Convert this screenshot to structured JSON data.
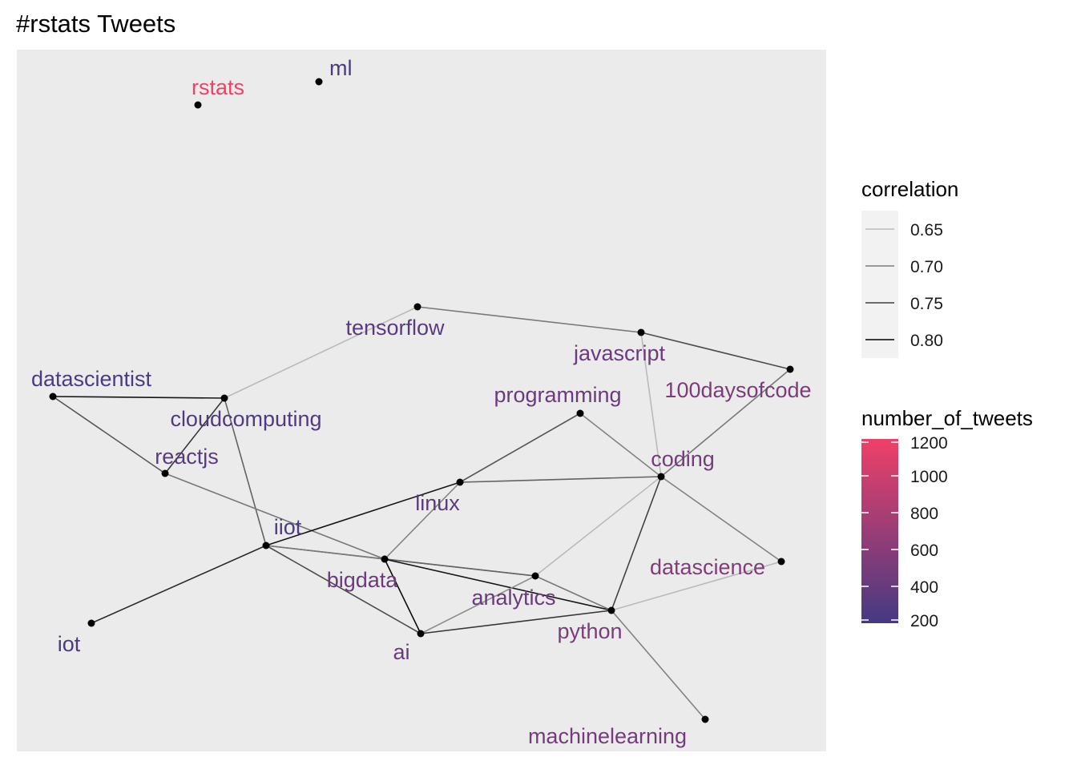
{
  "title": "#rstats Tweets",
  "chart_data": {
    "type": "network",
    "title": "#rstats Tweets",
    "nodes": [
      {
        "id": "rstats",
        "label": "rstats",
        "number_of_tweets": 1200
      },
      {
        "id": "ml",
        "label": "ml",
        "number_of_tweets": 250
      },
      {
        "id": "tensorflow",
        "label": "tensorflow",
        "number_of_tweets": 330
      },
      {
        "id": "javascript",
        "label": "javascript",
        "number_of_tweets": 420
      },
      {
        "id": "100daysofcode",
        "label": "100daysofcode",
        "number_of_tweets": 520
      },
      {
        "id": "datascientist",
        "label": "datascientist",
        "number_of_tweets": 250
      },
      {
        "id": "cloudcomputing",
        "label": "cloudcomputing",
        "number_of_tweets": 280
      },
      {
        "id": "programming",
        "label": "programming",
        "number_of_tweets": 420
      },
      {
        "id": "reactjs",
        "label": "reactjs",
        "number_of_tweets": 330
      },
      {
        "id": "coding",
        "label": "coding",
        "number_of_tweets": 480
      },
      {
        "id": "linux",
        "label": "linux",
        "number_of_tweets": 330
      },
      {
        "id": "iiot",
        "label": "iiot",
        "number_of_tweets": 280
      },
      {
        "id": "bigdata",
        "label": "bigdata",
        "number_of_tweets": 420
      },
      {
        "id": "analytics",
        "label": "analytics",
        "number_of_tweets": 420
      },
      {
        "id": "datascience",
        "label": "datascience",
        "number_of_tweets": 560
      },
      {
        "id": "iot",
        "label": "iot",
        "number_of_tweets": 250
      },
      {
        "id": "python",
        "label": "python",
        "number_of_tweets": 520
      },
      {
        "id": "ai",
        "label": "ai",
        "number_of_tweets": 420
      },
      {
        "id": "machinelearning",
        "label": "machinelearning",
        "number_of_tweets": 480
      }
    ],
    "edges": [
      {
        "source": "tensorflow",
        "target": "javascript",
        "correlation": 0.72
      },
      {
        "source": "tensorflow",
        "target": "cloudcomputing",
        "correlation": 0.66
      },
      {
        "source": "javascript",
        "target": "100daysofcode",
        "correlation": 0.76
      },
      {
        "source": "javascript",
        "target": "coding",
        "correlation": 0.66
      },
      {
        "source": "100daysofcode",
        "target": "coding",
        "correlation": 0.72
      },
      {
        "source": "datascientist",
        "target": "cloudcomputing",
        "correlation": 0.81
      },
      {
        "source": "datascientist",
        "target": "reactjs",
        "correlation": 0.75
      },
      {
        "source": "cloudcomputing",
        "target": "reactjs",
        "correlation": 0.78
      },
      {
        "source": "cloudcomputing",
        "target": "iiot",
        "correlation": 0.74
      },
      {
        "source": "reactjs",
        "target": "bigdata",
        "correlation": 0.72
      },
      {
        "source": "programming",
        "target": "linux",
        "correlation": 0.75
      },
      {
        "source": "programming",
        "target": "coding",
        "correlation": 0.71
      },
      {
        "source": "linux",
        "target": "coding",
        "correlation": 0.74
      },
      {
        "source": "linux",
        "target": "iiot",
        "correlation": 0.81
      },
      {
        "source": "linux",
        "target": "bigdata",
        "correlation": 0.71
      },
      {
        "source": "coding",
        "target": "datascience",
        "correlation": 0.71
      },
      {
        "source": "coding",
        "target": "python",
        "correlation": 0.77
      },
      {
        "source": "coding",
        "target": "analytics",
        "correlation": 0.66
      },
      {
        "source": "iiot",
        "target": "iot",
        "correlation": 0.79
      },
      {
        "source": "iiot",
        "target": "bigdata",
        "correlation": 0.75
      },
      {
        "source": "iiot",
        "target": "analytics",
        "correlation": 0.72
      },
      {
        "source": "iiot",
        "target": "ai",
        "correlation": 0.76
      },
      {
        "source": "bigdata",
        "target": "analytics",
        "correlation": 0.74
      },
      {
        "source": "bigdata",
        "target": "python",
        "correlation": 0.81
      },
      {
        "source": "bigdata",
        "target": "ai",
        "correlation": 0.82
      },
      {
        "source": "analytics",
        "target": "ai",
        "correlation": 0.7
      },
      {
        "source": "analytics",
        "target": "python",
        "correlation": 0.72
      },
      {
        "source": "datascience",
        "target": "python",
        "correlation": 0.66
      },
      {
        "source": "python",
        "target": "ai",
        "correlation": 0.78
      },
      {
        "source": "python",
        "target": "machinelearning",
        "correlation": 0.71
      }
    ],
    "legends": {
      "correlation": {
        "title": "correlation",
        "breaks": [
          0.65,
          0.7,
          0.75,
          0.8
        ],
        "labels": [
          "0.65",
          "0.70",
          "0.75",
          "0.80"
        ]
      },
      "number_of_tweets": {
        "title": "number_of_tweets",
        "range": [
          200,
          1200
        ],
        "breaks": [
          200,
          400,
          600,
          800,
          1000,
          1200
        ],
        "labels": [
          "200",
          "400",
          "600",
          "800",
          "1000",
          "1200"
        ],
        "color_low": "#443a83",
        "color_high": "#ef4068"
      }
    },
    "colors": {
      "panel_background": "#ebebeb",
      "node_point": "#000000"
    }
  }
}
